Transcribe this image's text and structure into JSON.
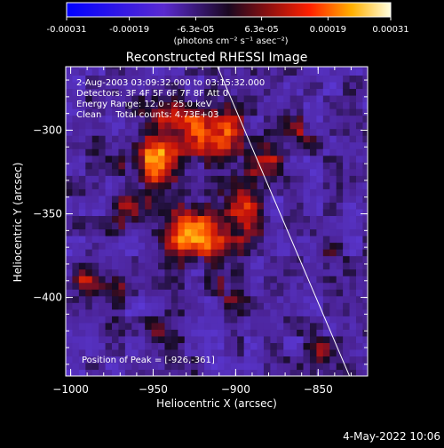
{
  "chart_data": {
    "type": "heatmap",
    "title": "Reconstructed RHESSI Image",
    "xlabel": "Heliocentric X (arcsec)",
    "ylabel": "Heliocentric Y (arcsec)",
    "xlim": [
      -1003,
      -820
    ],
    "ylim": [
      -447,
      -262
    ],
    "x_ticks": [
      -1000,
      -950,
      -900,
      -850
    ],
    "y_ticks": [
      -300,
      -350,
      -400
    ],
    "colorbar": {
      "label": "(photons cm⁻² s⁻¹ asec⁻²)",
      "ticks": [
        "-0.00031",
        "-0.00019",
        "-6.3e-05",
        "6.3e-05",
        "0.00019",
        "0.00031"
      ],
      "range": [
        -0.00031,
        0.00031
      ]
    },
    "annotations": [
      "2-Aug-2003 03:09:32.000 to 03:15:32.000",
      "Detectors: 3F 4F 5F 6F 7F 8F Att 0",
      "Energy Range: 12.0 - 25.0 keV",
      "Clean     Total counts: 4.73E+03"
    ],
    "peak_label": "Position of Peak = [-926,-361]",
    "peak": [
      -926,
      -361
    ],
    "limb": [
      [
        -911,
        -262
      ],
      [
        -831,
        -447
      ]
    ],
    "sources": [
      {
        "x": -926,
        "y": -361,
        "amp": 1.0,
        "sx": 14,
        "sy": 11
      },
      {
        "x": -948,
        "y": -318,
        "amp": 0.85,
        "sx": 11,
        "sy": 10
      },
      {
        "x": -912,
        "y": -300,
        "amp": 0.75,
        "sx": 12,
        "sy": 12
      },
      {
        "x": -938,
        "y": -290,
        "amp": 0.55,
        "sx": 9,
        "sy": 7
      },
      {
        "x": -895,
        "y": -345,
        "amp": 0.55,
        "sx": 8,
        "sy": 14
      },
      {
        "x": -965,
        "y": -345,
        "amp": 0.5,
        "sx": 7,
        "sy": 8
      },
      {
        "x": -990,
        "y": -388,
        "amp": 0.55,
        "sx": 6,
        "sy": 7
      },
      {
        "x": -970,
        "y": -395,
        "amp": 0.35,
        "sx": 6,
        "sy": 6
      },
      {
        "x": -880,
        "y": -315,
        "amp": 0.4,
        "sx": 7,
        "sy": 8
      },
      {
        "x": -900,
        "y": -395,
        "amp": 0.35,
        "sx": 7,
        "sy": 7
      },
      {
        "x": -940,
        "y": -420,
        "amp": 0.3,
        "sx": 8,
        "sy": 6
      },
      {
        "x": -862,
        "y": -300,
        "amp": 0.3,
        "sx": 6,
        "sy": 6
      },
      {
        "x": -843,
        "y": -375,
        "amp": 0.3,
        "sx": 6,
        "sy": 6
      },
      {
        "x": -848,
        "y": -432,
        "amp": 0.3,
        "sx": 6,
        "sy": 5
      },
      {
        "x": -828,
        "y": -330,
        "amp": 0.25,
        "sx": 5,
        "sy": 6
      }
    ]
  },
  "timestamp": "4-May-2022 10:06"
}
